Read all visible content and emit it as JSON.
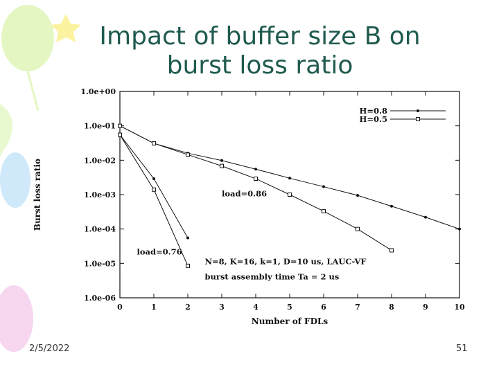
{
  "slide": {
    "title_line1": "Impact of buffer size B on",
    "title_line2": "burst loss ratio",
    "date": "2/5/2022",
    "page_number": "51"
  },
  "colors": {
    "title": "#1f5a4f",
    "balloon_green": "#dff5b8",
    "balloon_blue": "#c8e6fb",
    "balloon_pink": "#f7d0ee",
    "star_yellow": "#fbf3a0"
  },
  "chart_data": {
    "type": "line",
    "xlabel": "Number of FDLs",
    "ylabel": "Burst loss ratio",
    "xlim": [
      0,
      10
    ],
    "ylog": true,
    "ylim": [
      1e-06,
      1
    ],
    "x_ticks": [
      "0",
      "1",
      "2",
      "3",
      "4",
      "5",
      "6",
      "7",
      "8",
      "9",
      "10"
    ],
    "y_ticks": [
      "1.0e+00",
      "1.0e-01",
      "1.0e-02",
      "1.0e-03",
      "1.0e-04",
      "1.0e-05",
      "1.0e-06"
    ],
    "legend": {
      "position": "top-right",
      "entries": [
        "H=0.8",
        "H=0.5"
      ]
    },
    "grid": false,
    "series": [
      {
        "name": "H=0.8",
        "marker": "dot",
        "curve": "load=0.86",
        "x": [
          0,
          1,
          2,
          3,
          4,
          5,
          6,
          7,
          8,
          9,
          10
        ],
        "y": [
          0.1,
          0.031,
          0.016,
          0.0098,
          0.0055,
          0.003,
          0.0017,
          0.00095,
          0.00046,
          0.00022,
          0.0001
        ]
      },
      {
        "name": "H=0.5",
        "marker": "square",
        "curve": "load=0.86",
        "x": [
          0,
          1,
          2,
          3,
          4,
          5,
          6,
          7,
          8
        ],
        "y": [
          0.1,
          0.031,
          0.0145,
          0.0068,
          0.0029,
          0.001,
          0.00033,
          0.0001,
          2.4e-05
        ]
      },
      {
        "name": "H=0.8",
        "marker": "dot",
        "curve": "load=0.76",
        "x": [
          0,
          1,
          2
        ],
        "y": [
          0.055,
          0.0029,
          5.5e-05
        ]
      },
      {
        "name": "H=0.5",
        "marker": "square",
        "curve": "load=0.76",
        "x": [
          0,
          1,
          2
        ],
        "y": [
          0.055,
          0.0014,
          8.5e-06
        ]
      }
    ],
    "annotations": [
      {
        "text": "load=0.86",
        "x": 3.0,
        "y": 0.0009
      },
      {
        "text": "load=0.76",
        "x": 0.5,
        "y": 1.8e-05
      },
      {
        "text": "N=8, K=16, k=1, D=10 us, LAUC-VF",
        "x": 2.5,
        "y": 9.5e-06
      },
      {
        "text": "burst assembly time Ta = 2 us",
        "x": 2.5,
        "y": 3.4e-06
      }
    ]
  }
}
